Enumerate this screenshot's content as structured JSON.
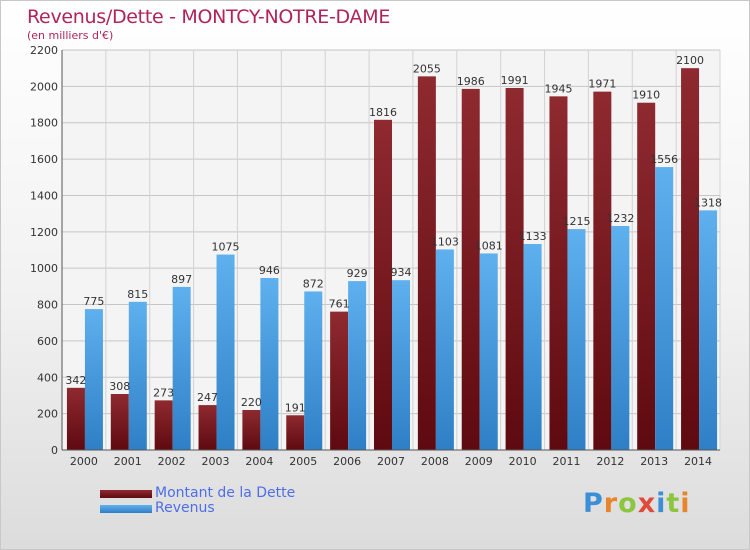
{
  "header": {
    "title": "Revenus/Dette - MONTCY-NOTRE-DAME",
    "subtitle": "(en milliers d'€)"
  },
  "colors": {
    "dette": "#7a1c22",
    "revenus": "#4ba0e2",
    "title": "#b0245a",
    "legend_text": "#4d6ee6"
  },
  "logo": {
    "text": "Proxiti",
    "letter_colors": [
      "#3c8fd6",
      "#e8842a",
      "#8cc63e",
      "#e04a3a",
      "#3c8fd6",
      "#8cc63e",
      "#e8842a"
    ]
  },
  "chart_data": {
    "type": "bar",
    "categories": [
      "2000",
      "2001",
      "2002",
      "2003",
      "2004",
      "2005",
      "2006",
      "2007",
      "2008",
      "2009",
      "2010",
      "2011",
      "2012",
      "2013",
      "2014"
    ],
    "series": [
      {
        "name": "Montant de la Dette",
        "values": [
          342,
          308,
          273,
          247,
          220,
          191,
          761,
          1816,
          2055,
          1986,
          1991,
          1945,
          1971,
          1910,
          2100
        ]
      },
      {
        "name": "Revenus",
        "values": [
          775,
          815,
          897,
          1075,
          946,
          872,
          929,
          934,
          1103,
          1081,
          1133,
          1215,
          1232,
          1556,
          1318
        ]
      }
    ],
    "title": "Revenus/Dette - MONTCY-NOTRE-DAME",
    "subtitle": "(en milliers d'€)",
    "ylim": [
      0,
      2200
    ],
    "yticks": [
      0,
      200,
      400,
      600,
      800,
      1000,
      1200,
      1400,
      1600,
      1800,
      2000,
      2200
    ],
    "grid": true,
    "legend": "bottom-left"
  }
}
